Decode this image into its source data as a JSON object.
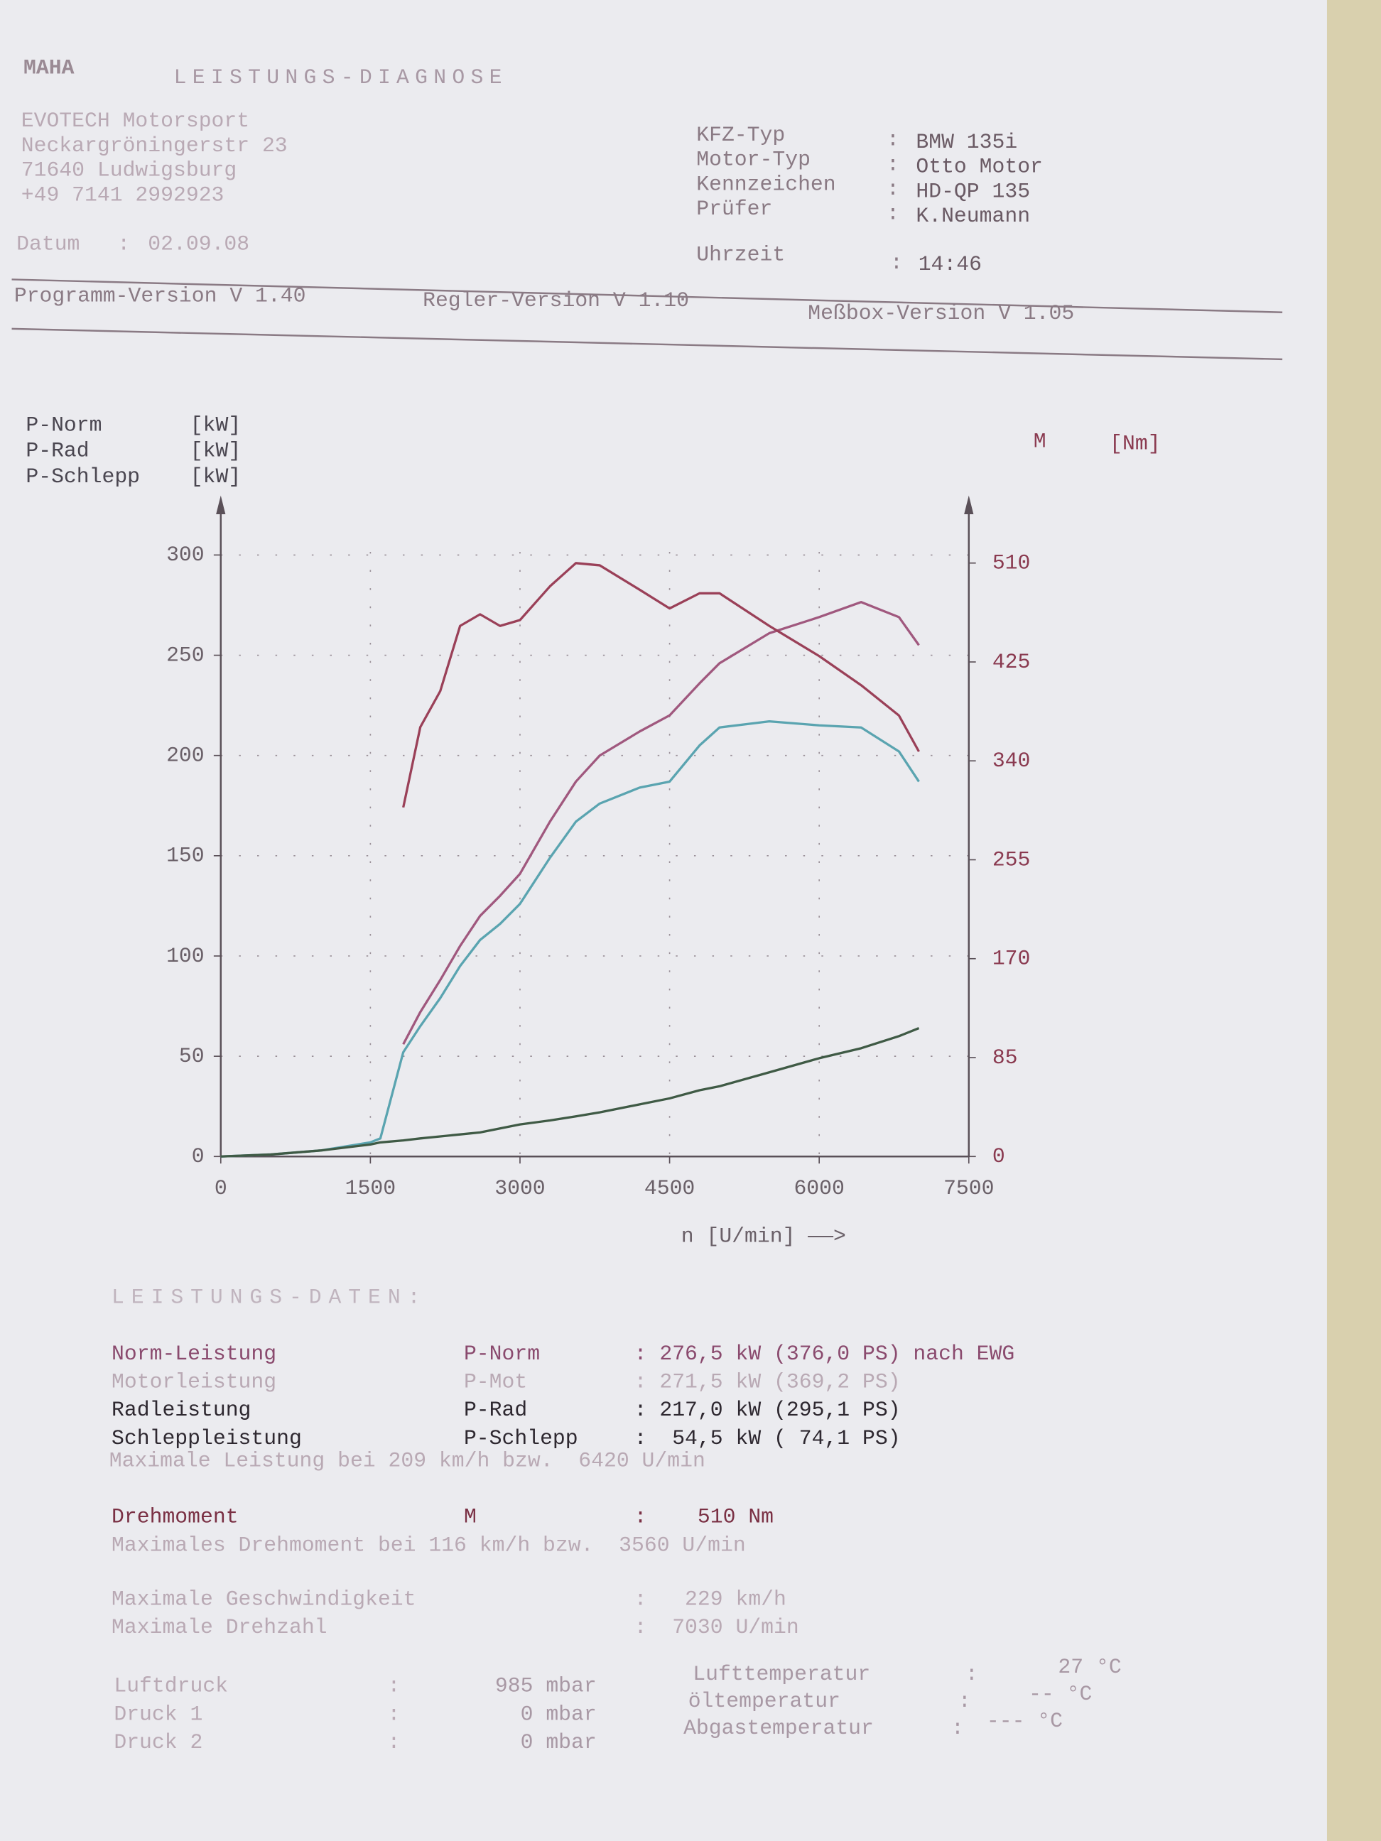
{
  "header": {
    "logo": "MAHA",
    "title": "LEISTUNGS-DIAGNOSE"
  },
  "company": [
    "EVOTECH Motorsport",
    "Neckargröningerstr 23",
    "71640 Ludwigsburg",
    "+49 7141 2992923"
  ],
  "date": {
    "label": "Datum",
    "value": "02.09.08"
  },
  "separator": ":",
  "vehicle": [
    {
      "label": "KFZ-Typ",
      "value": "BMW 135i"
    },
    {
      "label": "Motor-Typ",
      "value": "Otto Motor"
    },
    {
      "label": "Kennzeichen",
      "value": "HD-QP 135"
    },
    {
      "label": "Prüfer",
      "value": "K.Neumann"
    }
  ],
  "time": {
    "label": "Uhrzeit",
    "value": "14:46"
  },
  "versions": [
    "Programm-Version V 1.40",
    "Regler-Version V 1.10",
    "Meßbox-Version V 1.05"
  ],
  "chart_data": {
    "type": "line",
    "y_unit": "[kW]",
    "y2_unit": "[Nm]",
    "x_label": "n [U/min] ——>",
    "x": [
      0,
      500,
      1000,
      1500,
      1600,
      1830,
      2000,
      2200,
      2400,
      2600,
      2800,
      3000,
      3300,
      3560,
      3800,
      4200,
      4500,
      4800,
      5000,
      5500,
      6000,
      6420,
      6800,
      7000
    ],
    "series": [
      {
        "name": "P-Norm",
        "color": "#a0587e",
        "values": [
          null,
          null,
          null,
          null,
          null,
          56,
          72,
          88,
          105,
          120,
          130,
          141,
          167,
          187,
          200,
          212,
          220,
          236,
          246,
          261,
          269,
          276.5,
          269,
          255
        ]
      },
      {
        "name": "P-Rad",
        "color": "#5aa4b0",
        "values": [
          0,
          1,
          3,
          7,
          9,
          52,
          65,
          79,
          95,
          108,
          116,
          126,
          149,
          167,
          176,
          184,
          187,
          205,
          214,
          217,
          215,
          214,
          202,
          187
        ]
      },
      {
        "name": "P-Schlepp",
        "color": "#3f5a45",
        "values": [
          0,
          1,
          3,
          6,
          7,
          8,
          9,
          10,
          11,
          12,
          14,
          16,
          18,
          20,
          22,
          26,
          29,
          33,
          35,
          42,
          49,
          54,
          60,
          64
        ]
      },
      {
        "name": "M",
        "color": "#9a4058",
        "axis": "y2",
        "values": [
          null,
          null,
          null,
          null,
          null,
          300,
          369,
          400,
          456,
          466,
          456,
          461,
          490,
          510,
          508,
          487,
          471,
          484,
          484,
          456,
          430,
          405,
          379,
          348
        ]
      }
    ],
    "xlim": [
      0,
      7500
    ],
    "xticks": [
      0,
      1500,
      3000,
      4500,
      6000,
      7500
    ],
    "ylim": [
      0,
      325
    ],
    "yticks": [
      0,
      50,
      100,
      150,
      200,
      250,
      300
    ],
    "y2lim": [
      0,
      560
    ],
    "y2ticks": [
      0,
      85,
      170,
      255,
      340,
      425,
      510
    ],
    "grid": true
  },
  "results": {
    "title": "LEISTUNGS-DATEN:",
    "power_rows": [
      [
        "Norm-Leistung",
        "P-Norm",
        ": 276,5 kW (376,0 PS) nach EWG"
      ],
      [
        "Motorleistung",
        "P-Mot",
        ": 271,5 kW (369,2 PS)"
      ],
      [
        "Radleistung",
        "P-Rad",
        ": 217,0 kW (295,1 PS)"
      ],
      [
        "Schleppleistung",
        "P-Schlepp",
        ":  54,5 kW ( 74,1 PS)"
      ]
    ],
    "max_power": "Maximale Leistung bei 209 km/h bzw.  6420 U/min",
    "torque_row": [
      "Drehmoment",
      "M",
      ":    510 Nm"
    ],
    "max_torque": "Maximales Drehmoment bei 116 km/h bzw.  3560 U/min",
    "speed_rows": [
      [
        "Maximale Geschwindigkeit",
        ":   229 km/h"
      ],
      [
        "Maximale Drehzahl",
        ":  7030 U/min"
      ]
    ],
    "pressure_rows": [
      [
        "Luftdruck",
        "985 mbar"
      ],
      [
        "Druck 1",
        "0 mbar"
      ],
      [
        "Druck 2",
        "0 mbar"
      ]
    ],
    "temperature_rows": [
      [
        "Lufttemperatur",
        "27 °C"
      ],
      [
        "öltemperatur",
        "-- °C"
      ],
      [
        "Abgastemperatur",
        "--- °C"
      ]
    ]
  }
}
